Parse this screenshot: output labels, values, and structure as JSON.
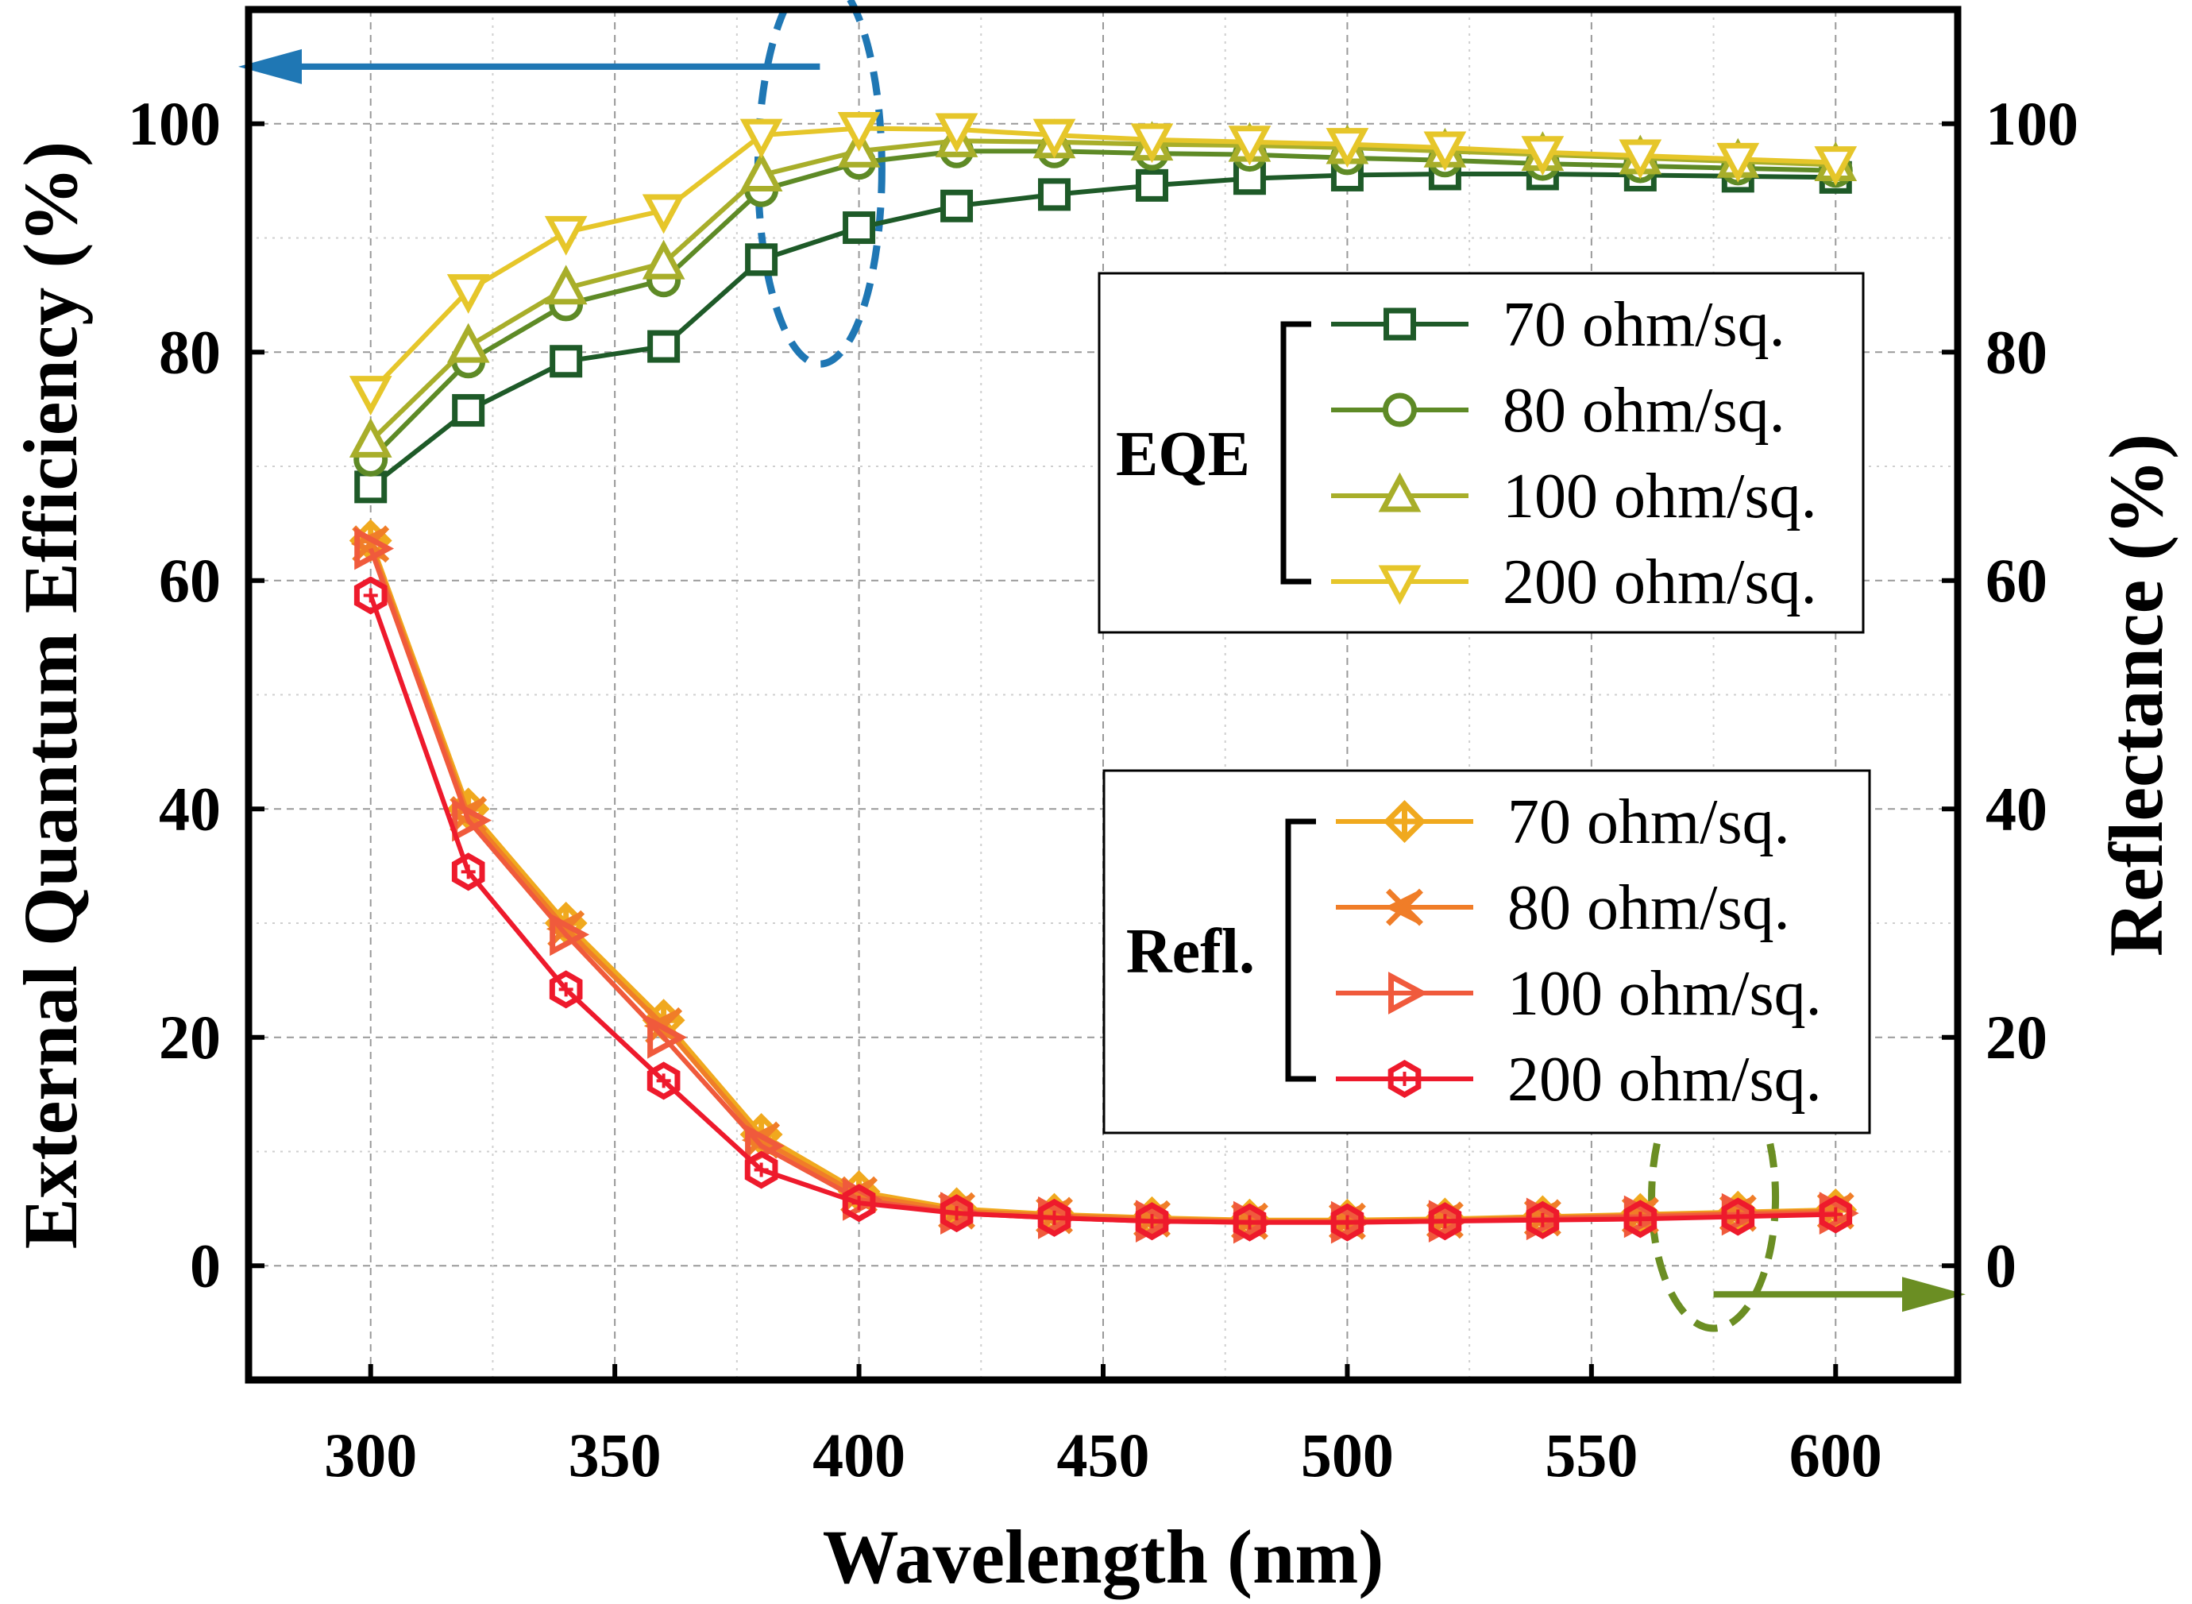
{
  "chart_data": {
    "type": "line",
    "title": "",
    "xlabel": "Wavelength (nm)",
    "ylabel_left": "External Quantum Efficiency (%)",
    "ylabel_right": "Reflectance (%)",
    "xlim": [
      275,
      625
    ],
    "ylim_left": [
      -10,
      110
    ],
    "ylim_right": [
      -10,
      110
    ],
    "grid": true,
    "x_ticks": [
      300,
      350,
      400,
      450,
      500,
      550,
      600
    ],
    "y_ticks_left": [
      0,
      20,
      40,
      60,
      80,
      100
    ],
    "y_ticks_right": [
      0,
      20,
      40,
      60,
      80,
      100
    ],
    "x": [
      300,
      320,
      340,
      360,
      380,
      400,
      420,
      440,
      460,
      480,
      500,
      520,
      540,
      560,
      580,
      600
    ],
    "groups": [
      {
        "name": "EQE",
        "axis": "left",
        "legend_position": "upper-right",
        "series": [
          {
            "name": "70 ohm/sq.",
            "color": "#1e5a28",
            "marker": "square",
            "values": [
              68.2,
              74.9,
              79.2,
              80.5,
              88.1,
              90.9,
              92.8,
              93.8,
              94.6,
              95.2,
              95.5,
              95.6,
              95.6,
              95.5,
              95.4,
              95.3
            ]
          },
          {
            "name": "80 ohm/sq.",
            "color": "#5e8a26",
            "marker": "circle",
            "values": [
              70.6,
              79.2,
              84.2,
              86.3,
              94.2,
              96.6,
              97.6,
              97.6,
              97.4,
              97.3,
              97.0,
              96.8,
              96.5,
              96.3,
              96.1,
              95.9
            ]
          },
          {
            "name": "100 ohm/sq.",
            "color": "#a8ae2a",
            "marker": "triangle-up",
            "values": [
              72.2,
              80.5,
              85.6,
              87.8,
              95.5,
              97.6,
              98.5,
              98.4,
              98.2,
              98.1,
              97.9,
              97.6,
              97.3,
              97.0,
              96.7,
              96.4
            ]
          },
          {
            "name": "200 ohm/sq.",
            "color": "#e6c62a",
            "marker": "triangle-down",
            "values": [
              76.5,
              85.4,
              90.5,
              92.4,
              99.0,
              99.6,
              99.5,
              99.0,
              98.6,
              98.4,
              98.2,
              97.9,
              97.5,
              97.2,
              96.9,
              96.6
            ]
          }
        ]
      },
      {
        "name": "Refl.",
        "axis": "right",
        "legend_position": "lower-right",
        "series": [
          {
            "name": "70 ohm/sq.",
            "color": "#f0a91e",
            "marker": "diamond-cross",
            "values": [
              63.5,
              40.0,
              30.0,
              21.5,
              11.5,
              6.5,
              5.0,
              4.5,
              4.2,
              4.0,
              4.0,
              4.1,
              4.3,
              4.5,
              4.7,
              4.9
            ]
          },
          {
            "name": "80 ohm/sq.",
            "color": "#f07d28",
            "marker": "x-left",
            "values": [
              63.2,
              39.5,
              29.5,
              21.0,
              11.0,
              6.2,
              4.8,
              4.4,
              4.1,
              3.9,
              3.9,
              4.0,
              4.2,
              4.4,
              4.6,
              4.8
            ]
          },
          {
            "name": "100 ohm/sq.",
            "color": "#f05a3c",
            "marker": "triangle-right",
            "values": [
              62.8,
              39.0,
              29.0,
              20.0,
              10.5,
              5.8,
              4.6,
              4.2,
              3.9,
              3.8,
              3.8,
              3.9,
              4.1,
              4.3,
              4.5,
              4.6
            ]
          },
          {
            "name": "200 ohm/sq.",
            "color": "#ee1a2c",
            "marker": "hexagon-cross",
            "values": [
              58.7,
              34.5,
              24.2,
              16.2,
              8.4,
              5.5,
              4.6,
              4.2,
              3.9,
              3.8,
              3.8,
              3.9,
              4.0,
              4.1,
              4.3,
              4.5
            ]
          }
        ]
      }
    ],
    "annotations": [
      {
        "type": "ellipse-arrow",
        "color": "#1f77b4",
        "target": "EQE",
        "axis": "left",
        "ellipse_center": [
          392,
          96
        ],
        "arrow_from": 392,
        "arrow_to": "left-edge",
        "arrow_y": 105
      },
      {
        "type": "ellipse-arrow",
        "color": "#6b8e23",
        "target": "Refl.",
        "axis": "right",
        "ellipse_center": [
          575,
          6
        ],
        "arrow_from": 575,
        "arrow_to": "right-edge",
        "arrow_y": -2.5
      }
    ]
  }
}
